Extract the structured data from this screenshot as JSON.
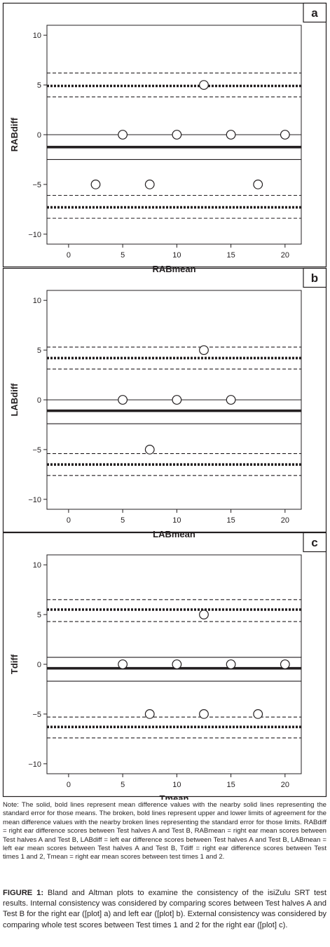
{
  "chart_data": [
    {
      "type": "scatter",
      "panel_label": "a",
      "xlabel": "RABmean",
      "ylabel": "RABdiff",
      "xlim": [
        -2,
        21.5
      ],
      "ylim": [
        -11,
        11
      ],
      "xticks": [
        0,
        5,
        10,
        15,
        20
      ],
      "yticks": [
        10,
        5,
        0,
        -5,
        -10
      ],
      "points": [
        {
          "x": 12.5,
          "y": 5
        },
        {
          "x": 5,
          "y": 0
        },
        {
          "x": 10,
          "y": 0
        },
        {
          "x": 15,
          "y": 0
        },
        {
          "x": 20,
          "y": 0
        },
        {
          "x": 2.5,
          "y": -5
        },
        {
          "x": 7.5,
          "y": -5
        },
        {
          "x": 17.5,
          "y": -5
        }
      ],
      "reference_lines": [
        {
          "y": 0,
          "style": "solid-thin"
        },
        {
          "y": -1.25,
          "style": "solid-bold"
        },
        {
          "y": -2.5,
          "style": "solid-thin"
        },
        {
          "y": 6.2,
          "style": "dashed"
        },
        {
          "y": 4.9,
          "style": "dotted-bold"
        },
        {
          "y": 3.8,
          "style": "dashed"
        },
        {
          "y": -6.1,
          "style": "dashed"
        },
        {
          "y": -7.3,
          "style": "dotted-bold"
        },
        {
          "y": -8.4,
          "style": "dashed"
        }
      ]
    },
    {
      "type": "scatter",
      "panel_label": "b",
      "xlabel": "LABmean",
      "ylabel": "LABdiff",
      "xlim": [
        -2,
        21.5
      ],
      "ylim": [
        -11,
        11
      ],
      "xticks": [
        0,
        5,
        10,
        15,
        20
      ],
      "yticks": [
        10,
        5,
        0,
        -5,
        -10
      ],
      "points": [
        {
          "x": 12.5,
          "y": 5
        },
        {
          "x": 5,
          "y": 0
        },
        {
          "x": 10,
          "y": 0
        },
        {
          "x": 15,
          "y": 0
        },
        {
          "x": 7.5,
          "y": -5
        }
      ],
      "reference_lines": [
        {
          "y": 0,
          "style": "solid-thin"
        },
        {
          "y": -1.1,
          "style": "solid-bold"
        },
        {
          "y": -2.4,
          "style": "solid-thin"
        },
        {
          "y": 5.3,
          "style": "dashed"
        },
        {
          "y": 4.2,
          "style": "dotted-bold"
        },
        {
          "y": 3.1,
          "style": "dashed"
        },
        {
          "y": -5.4,
          "style": "dashed"
        },
        {
          "y": -6.5,
          "style": "dotted-bold"
        },
        {
          "y": -7.6,
          "style": "dashed"
        }
      ]
    },
    {
      "type": "scatter",
      "panel_label": "c",
      "xlabel": "Tmean",
      "ylabel": "Tdiff",
      "xlim": [
        -2,
        21.5
      ],
      "ylim": [
        -11,
        11
      ],
      "xticks": [
        0,
        5,
        10,
        15,
        20
      ],
      "yticks": [
        10,
        5,
        0,
        -5,
        -10
      ],
      "points": [
        {
          "x": 12.5,
          "y": 5
        },
        {
          "x": 5,
          "y": 0
        },
        {
          "x": 10,
          "y": 0
        },
        {
          "x": 15,
          "y": 0
        },
        {
          "x": 20,
          "y": 0
        },
        {
          "x": 7.5,
          "y": -5
        },
        {
          "x": 12.5,
          "y": -5
        },
        {
          "x": 17.5,
          "y": -5
        }
      ],
      "reference_lines": [
        {
          "y": 0.7,
          "style": "solid-thin"
        },
        {
          "y": -0.4,
          "style": "solid-bold"
        },
        {
          "y": -1.7,
          "style": "solid-thin"
        },
        {
          "y": 6.5,
          "style": "dashed"
        },
        {
          "y": 5.5,
          "style": "dotted-bold"
        },
        {
          "y": 4.3,
          "style": "dashed"
        },
        {
          "y": -5.3,
          "style": "dashed"
        },
        {
          "y": -6.3,
          "style": "dotted-bold"
        },
        {
          "y": -7.4,
          "style": "dashed"
        }
      ]
    }
  ],
  "note": "Note: The solid, bold lines represent mean difference values with the nearby solid lines representing the standard error for those means. The broken, bold lines represent upper and lower limits of agreement for the mean difference values with the nearby broken lines representing the standard error for those limits. RABdiff = right ear difference scores between Test halves A and Test B, RABmean = right ear mean scores between Test halves A and Test B, LABdiff = left ear difference scores between Test halves A and Test B, LABmean = left ear mean scores between Test halves A and Test B, Tdiff = right ear difference scores between Test times 1 and 2, Tmean = right ear mean scores between test times 1 and 2.",
  "caption": {
    "label": "FIGURE 1:",
    "text": " Bland and Altman plots to examine the consistency of the isiZulu SRT test results. Internal consistency was considered by comparing scores between Test halves A and Test B for the right ear ([plot] a) and left ear ([plot] b). External consistency was considered by comparing whole test scores between Test times 1 and 2 for the right ear ([plot] c)."
  }
}
